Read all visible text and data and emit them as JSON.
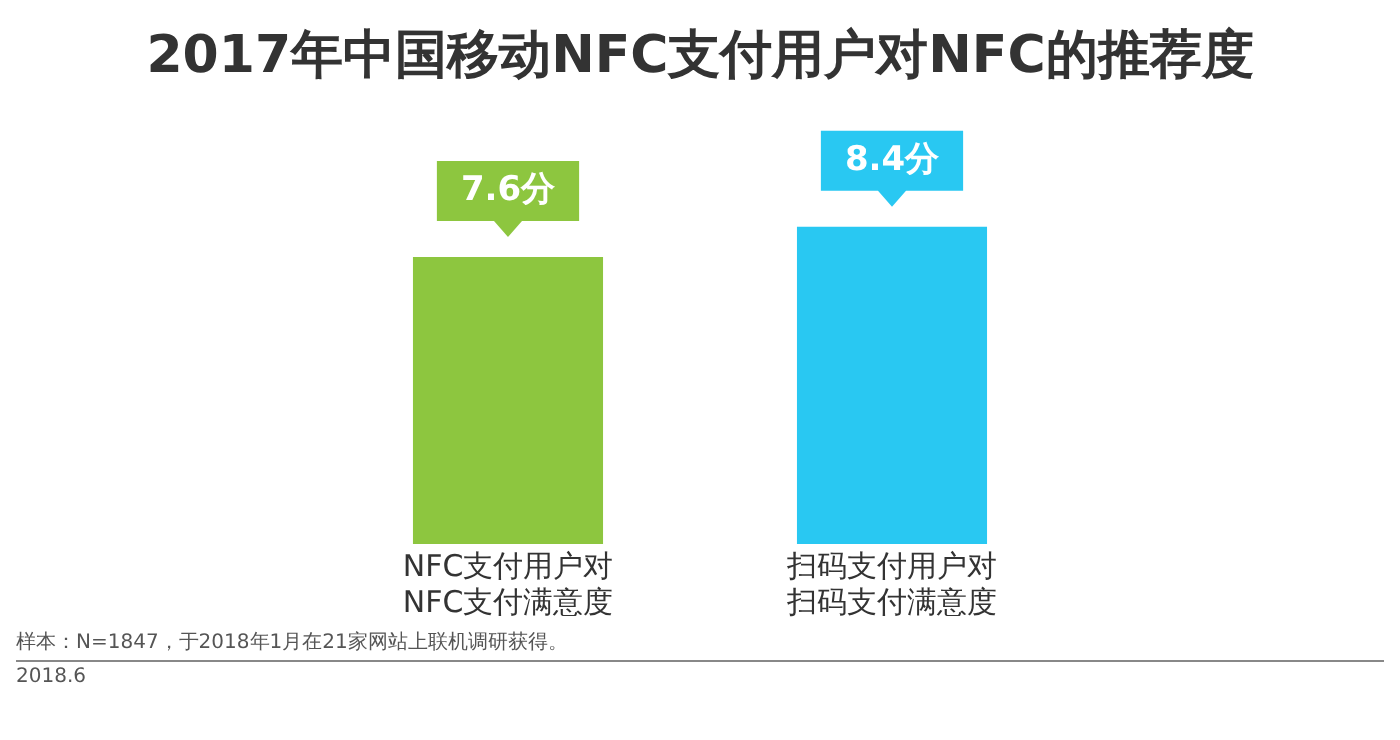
{
  "chart_data": {
    "type": "bar",
    "title": "2017年中国移动NFC支付用户对NFC的推荐度",
    "categories": [
      "NFC支付用户对NFC支付满意度",
      "扫码支付用户对扫码支付满意度"
    ],
    "values": [
      7.6,
      8.4
    ],
    "colors": [
      "#8dc63f",
      "#29c8f2"
    ],
    "value_labels": [
      "7.6分",
      "8.4分"
    ],
    "grid": false,
    "legend": false,
    "annotations": [
      "样本：N=1847，于2018年1月在21家网站上联机调研获得。",
      "2018.6"
    ]
  }
}
